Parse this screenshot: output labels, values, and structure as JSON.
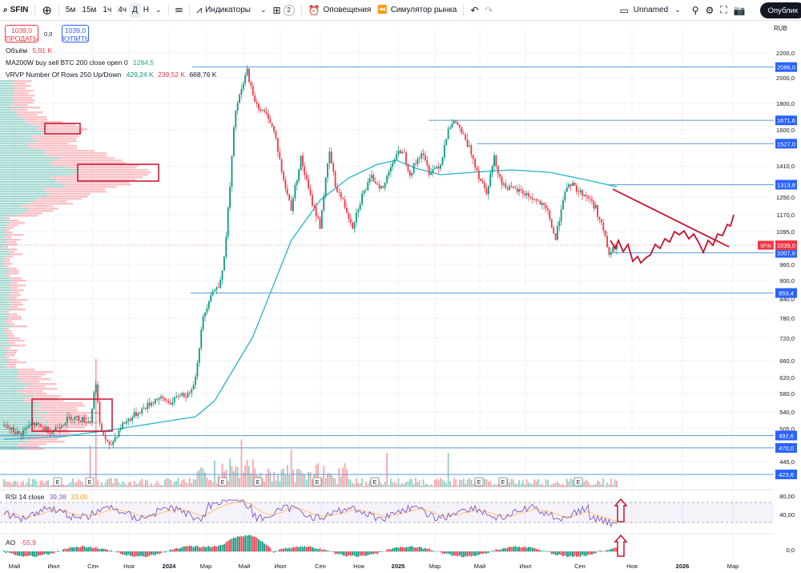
{
  "toolbar": {
    "symbol": "SFIN",
    "timeframes": [
      "5м",
      "15м",
      "1ч",
      "4ч",
      "Д",
      "Н"
    ],
    "active_timeframe": "Д",
    "indicators_label": "Индикаторы",
    "layouts_count": "2",
    "alerts_label": "Оповещения",
    "replay_label": "Симулятор рынка",
    "layout_name": "Unnamed",
    "publish_label": "Опублик"
  },
  "quotes": {
    "sell_price": "1039,0",
    "sell_label": "ПРОДАТЬ",
    "spread": "0,0",
    "buy_price": "1039,0",
    "buy_label": "КУПИТЬ"
  },
  "legend": {
    "volume_label": "Объём",
    "volume_value": "5,91 K",
    "ma_label": "MA200W buy sell BTC 200 close open 0",
    "ma_value": "1284,5",
    "vrvp_label": "VRVP Number Of Rows 250 Up/Down",
    "vrvp_up": "429,24 K",
    "vrvp_down": "239,52 K",
    "vrvp_total": "668,76 K",
    "rsi_label": "RSI 14 close",
    "rsi_value": "39,38",
    "rsi_ma": "33,05",
    "ao_label": "AO",
    "ao_value": "-55,9"
  },
  "currency": "RUB",
  "colors": {
    "up": "#089981",
    "down": "#f23645",
    "ma": "#22b5c9",
    "level": "#5b9bd5",
    "rsi": "#7e57c2",
    "annotation": "#c8102e"
  },
  "chart_data": {
    "type": "candlestick",
    "price_axis_ticks": [
      "2200,0",
      "2000,0",
      "1800,0",
      "1600,0",
      "1410,0",
      "1250,0",
      "1170,0",
      "1095,0",
      "960,0",
      "900,0",
      "840,0",
      "780,0",
      "720,0",
      "660,0",
      "620,0",
      "580,0",
      "540,0",
      "505,0",
      "445,0"
    ],
    "level_labels": [
      {
        "price": "2086,0",
        "value": 2086
      },
      {
        "price": "1671,6",
        "value": 1671.6
      },
      {
        "price": "1527,0",
        "value": 1527
      },
      {
        "price": "1313,8",
        "value": 1313.8
      },
      {
        "price": "1007,6",
        "value": 1007.6
      },
      {
        "price": "859,4",
        "value": 859.4
      },
      {
        "price": "492,6",
        "value": 492.6
      },
      {
        "price": "470,0",
        "value": 470
      },
      {
        "price": "423,6",
        "value": 423.6
      }
    ],
    "last_price": {
      "symbol": "SFIN",
      "price": "1039,0",
      "value": 1039
    },
    "time_axis": [
      "Май",
      "Июл",
      "Сен",
      "Ноя",
      "2024",
      "Мар",
      "Май",
      "Июл",
      "Сен",
      "Ноя",
      "2025",
      "Мар",
      "Май",
      "Июл",
      "Сен",
      "Ноя",
      "2026",
      "Мар"
    ],
    "earnings_marker": "E",
    "rsi_ticks": [
      "80,00",
      "40,00"
    ],
    "ao_ticks": [
      "0,0"
    ]
  }
}
